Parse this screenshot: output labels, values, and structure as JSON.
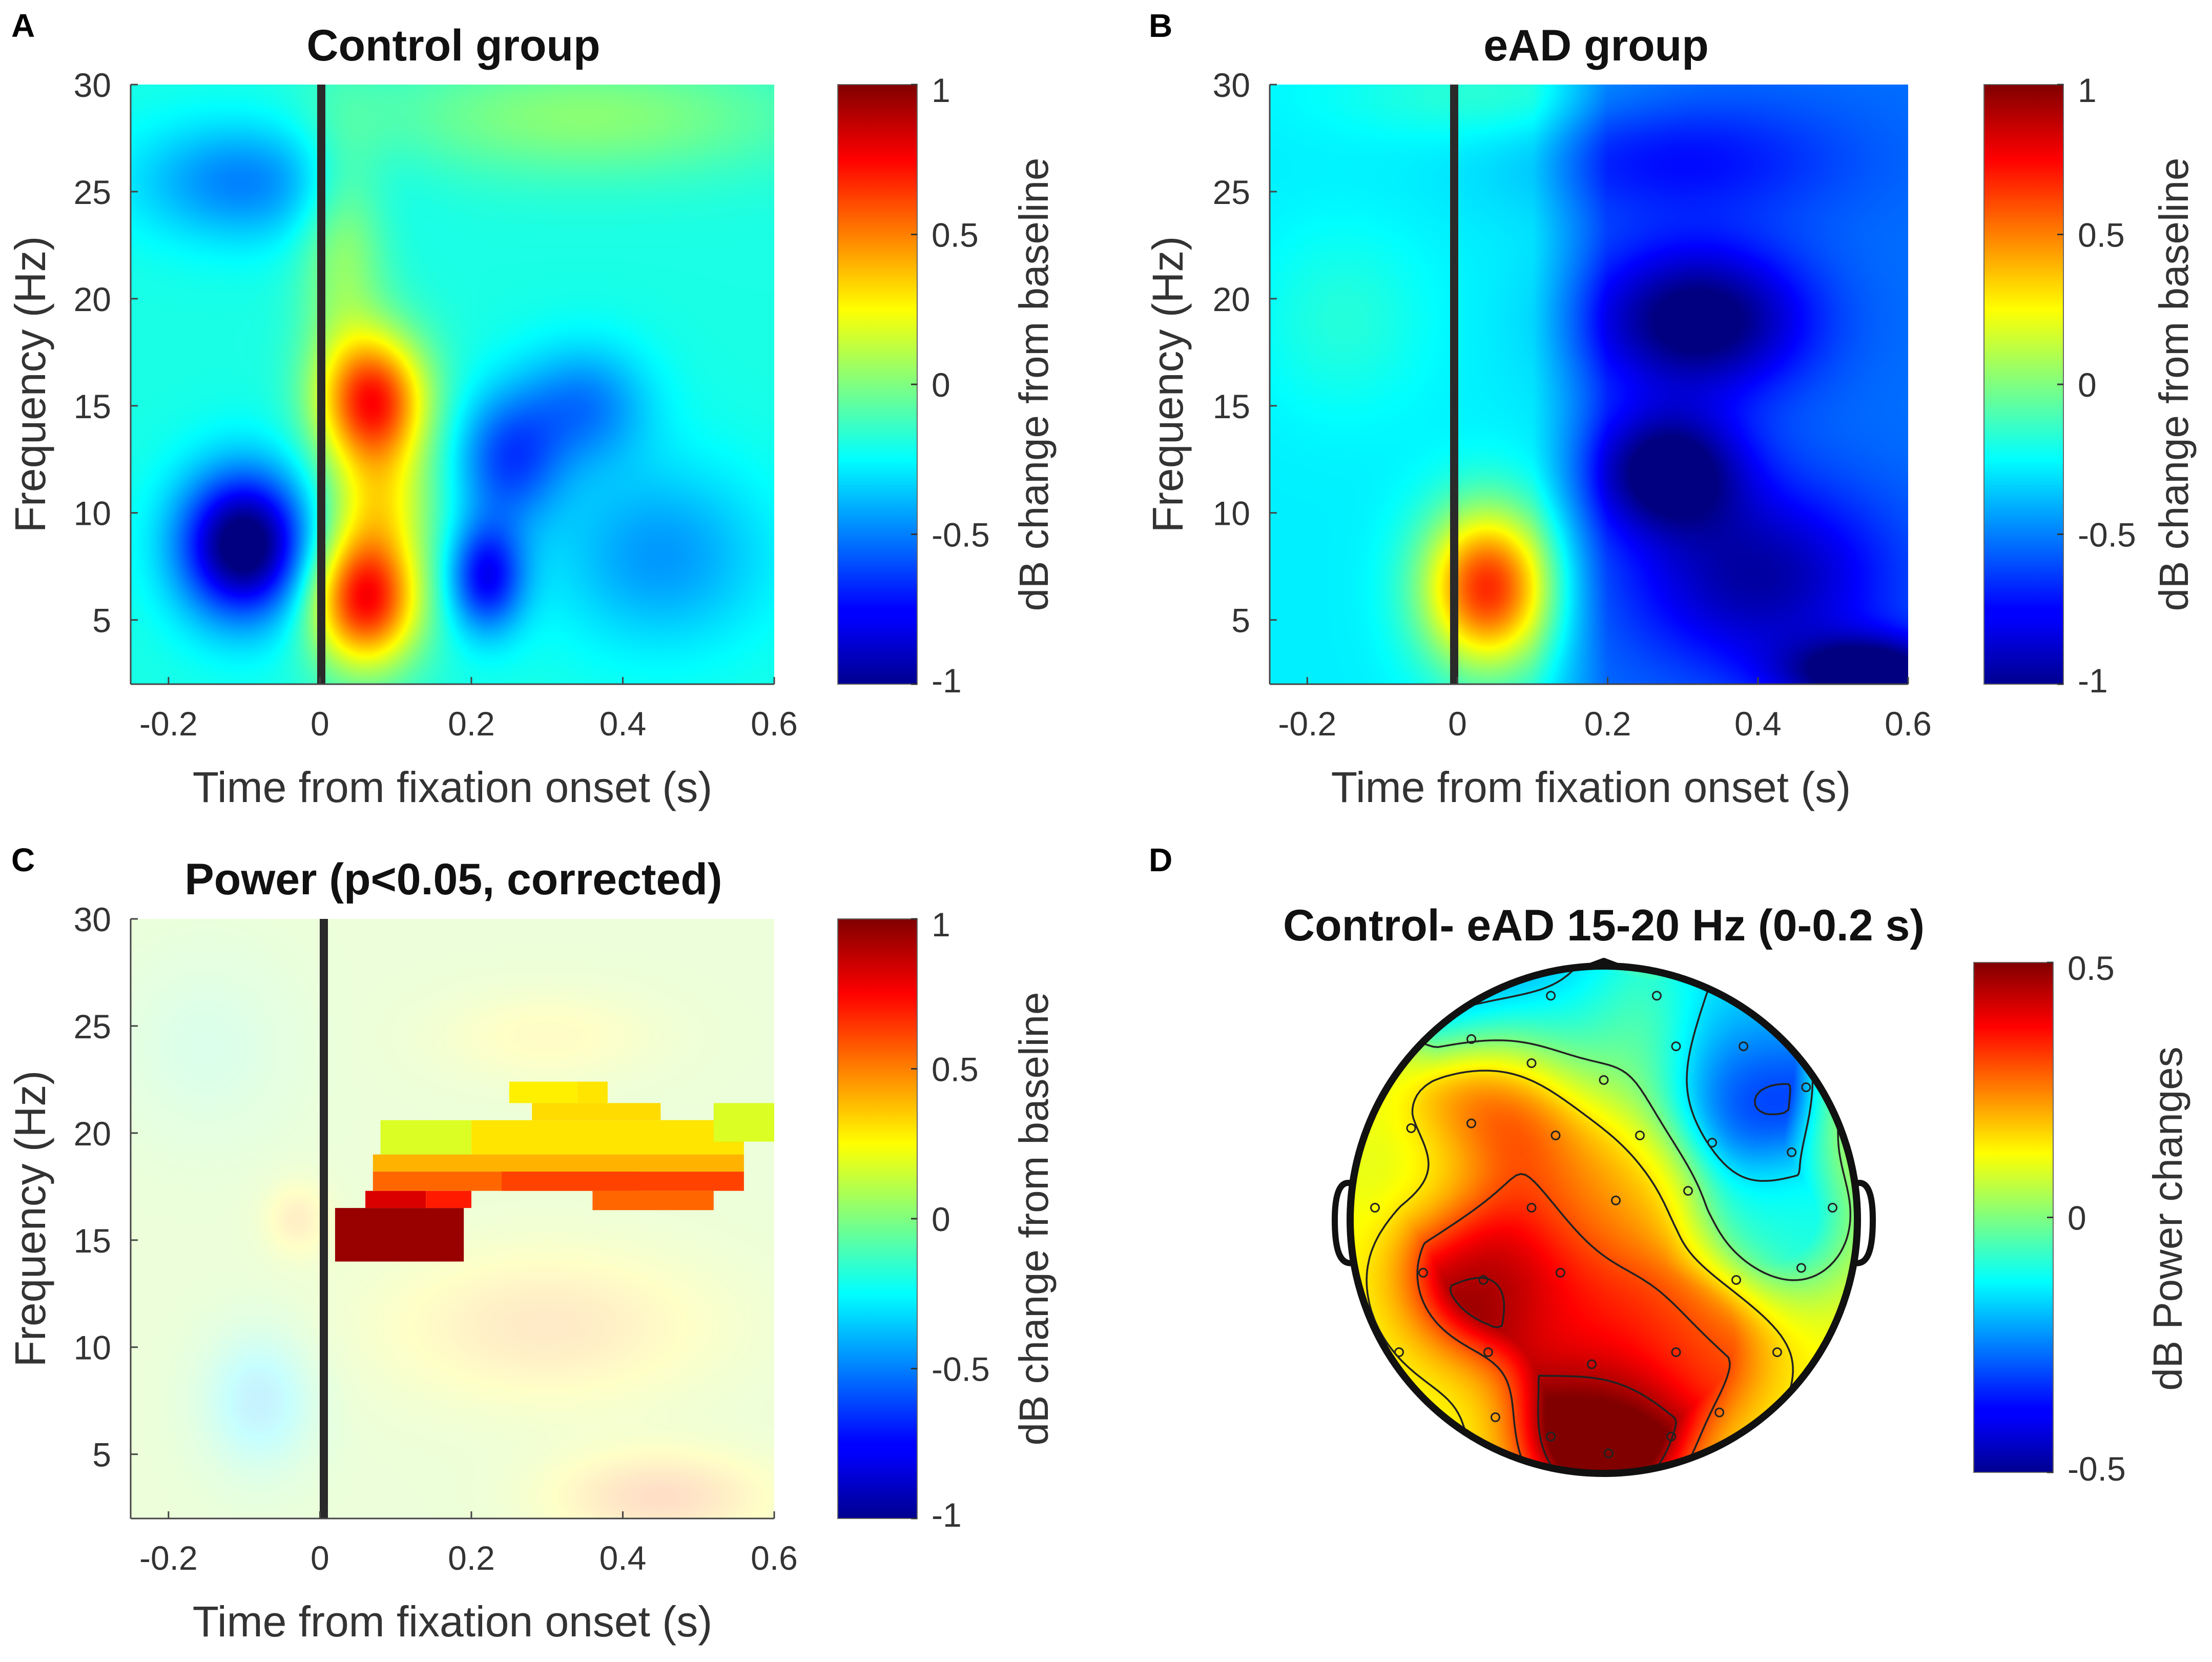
{
  "colors": {
    "onset_line": "#2a2a2a",
    "head_outline": "#111111",
    "contour": "#222222"
  },
  "chart_data": [
    {
      "panel": "A",
      "type": "heatmap",
      "title": "Control group",
      "xlabel": "Time from fixation onset (s)",
      "ylabel": "Frequency (Hz)",
      "xlim": [
        -0.25,
        0.6
      ],
      "ylim": [
        2,
        30
      ],
      "xticks": [
        -0.2,
        0,
        0.2,
        0.4,
        0.6
      ],
      "xtick_labels": [
        "-0.2",
        "0",
        "0.2",
        "0.4",
        "0.6"
      ],
      "yticks": [
        5,
        10,
        15,
        20,
        25,
        30
      ],
      "ytick_labels": [
        "5",
        "10",
        "15",
        "20",
        "25",
        "30"
      ],
      "onset_line_x": 0,
      "colorbar": {
        "label": "dB change from baseline",
        "range": [
          -1,
          1
        ],
        "ticks": [
          1,
          0.5,
          0,
          -0.5,
          -1
        ],
        "tick_labels": [
          "1",
          "0.5",
          "0",
          "-0.5",
          "-1"
        ]
      },
      "blobs": [
        {
          "t": 0.07,
          "f": 15.2,
          "amp": 0.9,
          "st": 0.05,
          "sf": 2.2
        },
        {
          "t": 0.06,
          "f": 6.0,
          "amp": 0.95,
          "st": 0.05,
          "sf": 2.2
        },
        {
          "t": 0.08,
          "f": 10.5,
          "amp": 0.35,
          "st": 0.05,
          "sf": 2.0
        },
        {
          "t": 0.03,
          "f": 22.5,
          "amp": 0.25,
          "st": 0.04,
          "sf": 4.0
        },
        {
          "t": -0.1,
          "f": 8.5,
          "amp": -0.9,
          "st": 0.06,
          "sf": 2.4
        },
        {
          "t": 0.22,
          "f": 7.0,
          "amp": -0.55,
          "st": 0.035,
          "sf": 1.8
        },
        {
          "t": 0.25,
          "f": 12.5,
          "amp": -0.4,
          "st": 0.05,
          "sf": 2.2
        },
        {
          "t": 0.35,
          "f": 15.0,
          "amp": -0.3,
          "st": 0.06,
          "sf": 2.0
        },
        {
          "t": -0.1,
          "f": 25.5,
          "amp": -0.3,
          "st": 0.1,
          "sf": 2.0
        },
        {
          "t": 0.45,
          "f": 8.0,
          "amp": -0.25,
          "st": 0.1,
          "sf": 3.0
        },
        {
          "t": 0.35,
          "f": 28.5,
          "amp": 0.22,
          "st": 0.2,
          "sf": 2.0
        }
      ],
      "base_value": -0.2
    },
    {
      "panel": "B",
      "type": "heatmap",
      "title": "eAD group",
      "xlabel": "Time from fixation onset (s)",
      "ylabel": "Frequency (Hz)",
      "xlim": [
        -0.25,
        0.6
      ],
      "ylim": [
        2,
        30
      ],
      "xticks": [
        -0.2,
        0,
        0.2,
        0.4,
        0.6
      ],
      "xtick_labels": [
        "-0.2",
        "0",
        "0.2",
        "0.4",
        "0.6"
      ],
      "yticks": [
        5,
        10,
        15,
        20,
        25,
        30
      ],
      "ytick_labels": [
        "5",
        "10",
        "15",
        "20",
        "25",
        "30"
      ],
      "onset_line_x": 0,
      "colorbar": {
        "label": "dB change from baseline",
        "range": [
          -1,
          1
        ],
        "ticks": [
          1,
          0.5,
          0,
          -0.5,
          -1
        ],
        "tick_labels": [
          "1",
          "0.5",
          "0",
          "-0.5",
          "-1"
        ]
      },
      "blobs": [
        {
          "t": 0.04,
          "f": 6.5,
          "amp": 0.95,
          "st": 0.06,
          "sf": 2.6
        },
        {
          "t": 0.32,
          "f": 19.0,
          "amp": -0.55,
          "st": 0.1,
          "sf": 2.4
        },
        {
          "t": 0.28,
          "f": 12.0,
          "amp": -0.55,
          "st": 0.07,
          "sf": 2.0
        },
        {
          "t": 0.4,
          "f": 7.0,
          "amp": -0.4,
          "st": 0.12,
          "sf": 3.0
        },
        {
          "t": 0.55,
          "f": 2.5,
          "amp": -0.6,
          "st": 0.08,
          "sf": 1.2
        },
        {
          "t": 0.3,
          "f": 26.5,
          "amp": -0.2,
          "st": 0.15,
          "sf": 2.0
        },
        {
          "t": -0.15,
          "f": 19.0,
          "amp": 0.1,
          "st": 0.08,
          "sf": 3.0
        },
        {
          "t": 0.05,
          "f": 29.5,
          "amp": 0.12,
          "st": 0.15,
          "sf": 1.5
        }
      ],
      "base_value": -0.28
    },
    {
      "panel": "C",
      "type": "heatmap",
      "title": "Power (p<0.05, corrected)",
      "xlabel": "Time from fixation onset (s)",
      "ylabel": "Frequency (Hz)",
      "xlim": [
        -0.25,
        0.6
      ],
      "ylim": [
        2,
        30
      ],
      "xticks": [
        -0.2,
        0,
        0.2,
        0.4,
        0.6
      ],
      "xtick_labels": [
        "-0.2",
        "0",
        "0.2",
        "0.4",
        "0.6"
      ],
      "yticks": [
        5,
        10,
        15,
        20,
        25,
        30
      ],
      "ytick_labels": [
        "5",
        "10",
        "15",
        "20",
        "25",
        "30"
      ],
      "onset_line_x": 0,
      "colorbar": {
        "label": "dB change from baseline",
        "range": [
          -1,
          1
        ],
        "ticks": [
          1,
          0.5,
          0,
          -0.5,
          -1
        ],
        "tick_labels": [
          "1",
          "0.5",
          "0",
          "-0.5",
          "-1"
        ]
      },
      "background_value": 0.08,
      "faded_blobs": [
        {
          "t": -0.08,
          "f": 7.5,
          "amp": -0.45,
          "st": 0.05,
          "sf": 2.2
        },
        {
          "t": 0.3,
          "f": 11.0,
          "amp": 0.35,
          "st": 0.15,
          "sf": 2.5
        },
        {
          "t": 0.45,
          "f": 3.0,
          "amp": 0.45,
          "st": 0.1,
          "sf": 1.5
        },
        {
          "t": 0.3,
          "f": 24.5,
          "amp": 0.2,
          "st": 0.1,
          "sf": 1.5
        },
        {
          "t": -0.15,
          "f": 24.0,
          "amp": -0.15,
          "st": 0.08,
          "sf": 3.0
        },
        {
          "t": -0.03,
          "f": 16.0,
          "amp": 0.3,
          "st": 0.03,
          "sf": 1.2
        }
      ],
      "significant_cells": [
        {
          "t0": 0.02,
          "t1": 0.19,
          "f0": 14.0,
          "f1": 16.5,
          "value": 0.95
        },
        {
          "t0": 0.06,
          "t1": 0.14,
          "f0": 16.5,
          "f1": 17.3,
          "value": 0.82
        },
        {
          "t0": 0.14,
          "t1": 0.2,
          "f0": 16.5,
          "f1": 17.3,
          "value": 0.7
        },
        {
          "t0": 0.07,
          "t1": 0.42,
          "f0": 17.3,
          "f1": 18.2,
          "value": 0.55
        },
        {
          "t0": 0.24,
          "t1": 0.56,
          "f0": 17.3,
          "f1": 18.2,
          "value": 0.62
        },
        {
          "t0": 0.36,
          "t1": 0.52,
          "f0": 16.4,
          "f1": 17.3,
          "value": 0.55
        },
        {
          "t0": 0.07,
          "t1": 0.56,
          "f0": 18.2,
          "f1": 19.0,
          "value": 0.4
        },
        {
          "t0": 0.08,
          "t1": 0.2,
          "f0": 19.0,
          "f1": 20.6,
          "value": 0.18
        },
        {
          "t0": 0.2,
          "t1": 0.56,
          "f0": 19.0,
          "f1": 20.6,
          "value": 0.3
        },
        {
          "t0": 0.28,
          "t1": 0.45,
          "f0": 20.6,
          "f1": 21.4,
          "value": 0.32
        },
        {
          "t0": 0.25,
          "t1": 0.34,
          "f0": 21.4,
          "f1": 22.4,
          "value": 0.28
        },
        {
          "t0": 0.34,
          "t1": 0.38,
          "f0": 21.4,
          "f1": 22.4,
          "value": 0.3
        },
        {
          "t0": 0.45,
          "t1": 0.52,
          "f0": 19.6,
          "f1": 20.6,
          "value": 0.3
        },
        {
          "t0": 0.52,
          "t1": 0.6,
          "f0": 19.6,
          "f1": 21.4,
          "value": 0.18
        }
      ]
    },
    {
      "panel": "D",
      "type": "heatmap",
      "subtype": "topoplot",
      "title": "Control-  eAD 15-20 Hz (0-0.2 s)",
      "colorbar": {
        "label": "dB Power changes",
        "range": [
          -0.5,
          0.5
        ],
        "ticks": [
          0.5,
          0,
          -0.5
        ],
        "tick_labels": [
          "0.5",
          "0",
          "-0.5"
        ]
      },
      "sources": [
        {
          "x": -0.15,
          "y": 0.78,
          "v": -0.2
        },
        {
          "x": -0.38,
          "y": 0.48,
          "v": 0.42
        },
        {
          "x": -0.45,
          "y": -0.2,
          "v": 0.5
        },
        {
          "x": 0.0,
          "y": -0.85,
          "v": 0.62
        },
        {
          "x": -0.05,
          "y": -0.45,
          "v": 0.35
        },
        {
          "x": 0.35,
          "y": -0.5,
          "v": 0.3
        },
        {
          "x": 0.52,
          "y": 0.5,
          "v": -0.38
        },
        {
          "x": 0.7,
          "y": 0.0,
          "v": -0.1
        },
        {
          "x": 0.1,
          "y": 0.2,
          "v": 0.15
        },
        {
          "x": -0.7,
          "y": 0.2,
          "v": 0.08
        },
        {
          "x": -0.5,
          "y": 0.9,
          "v": -0.25
        },
        {
          "x": 0.55,
          "y": 0.85,
          "v": -0.15
        },
        {
          "x": 0.1,
          "y": 0.65,
          "v": 0.05
        },
        {
          "x": -0.1,
          "y": 0.05,
          "v": 0.3
        }
      ],
      "electrodes": [
        [
          -0.22,
          0.93
        ],
        [
          0.22,
          0.93
        ],
        [
          -0.55,
          0.75
        ],
        [
          -0.3,
          0.65
        ],
        [
          0.0,
          0.58
        ],
        [
          0.3,
          0.72
        ],
        [
          0.58,
          0.72
        ],
        [
          0.84,
          0.55
        ],
        [
          -0.8,
          0.38
        ],
        [
          -0.55,
          0.4
        ],
        [
          -0.2,
          0.35
        ],
        [
          0.15,
          0.35
        ],
        [
          0.45,
          0.32
        ],
        [
          0.78,
          0.28
        ],
        [
          -0.95,
          0.05
        ],
        [
          -0.3,
          0.05
        ],
        [
          0.05,
          0.08
        ],
        [
          0.35,
          0.12
        ],
        [
          0.95,
          0.05
        ],
        [
          -0.75,
          -0.22
        ],
        [
          -0.5,
          -0.25
        ],
        [
          -0.18,
          -0.22
        ],
        [
          0.55,
          -0.25
        ],
        [
          0.82,
          -0.2
        ],
        [
          -0.85,
          -0.55
        ],
        [
          -0.48,
          -0.55
        ],
        [
          -0.05,
          -0.6
        ],
        [
          0.3,
          -0.55
        ],
        [
          0.72,
          -0.55
        ],
        [
          -0.45,
          -0.82
        ],
        [
          -0.22,
          -0.9
        ],
        [
          0.02,
          -0.97
        ],
        [
          0.28,
          -0.9
        ],
        [
          0.48,
          -0.8
        ]
      ]
    }
  ],
  "panels": {
    "A": {
      "letter": "A"
    },
    "B": {
      "letter": "B"
    },
    "C": {
      "letter": "C"
    },
    "D": {
      "letter": "D"
    }
  }
}
